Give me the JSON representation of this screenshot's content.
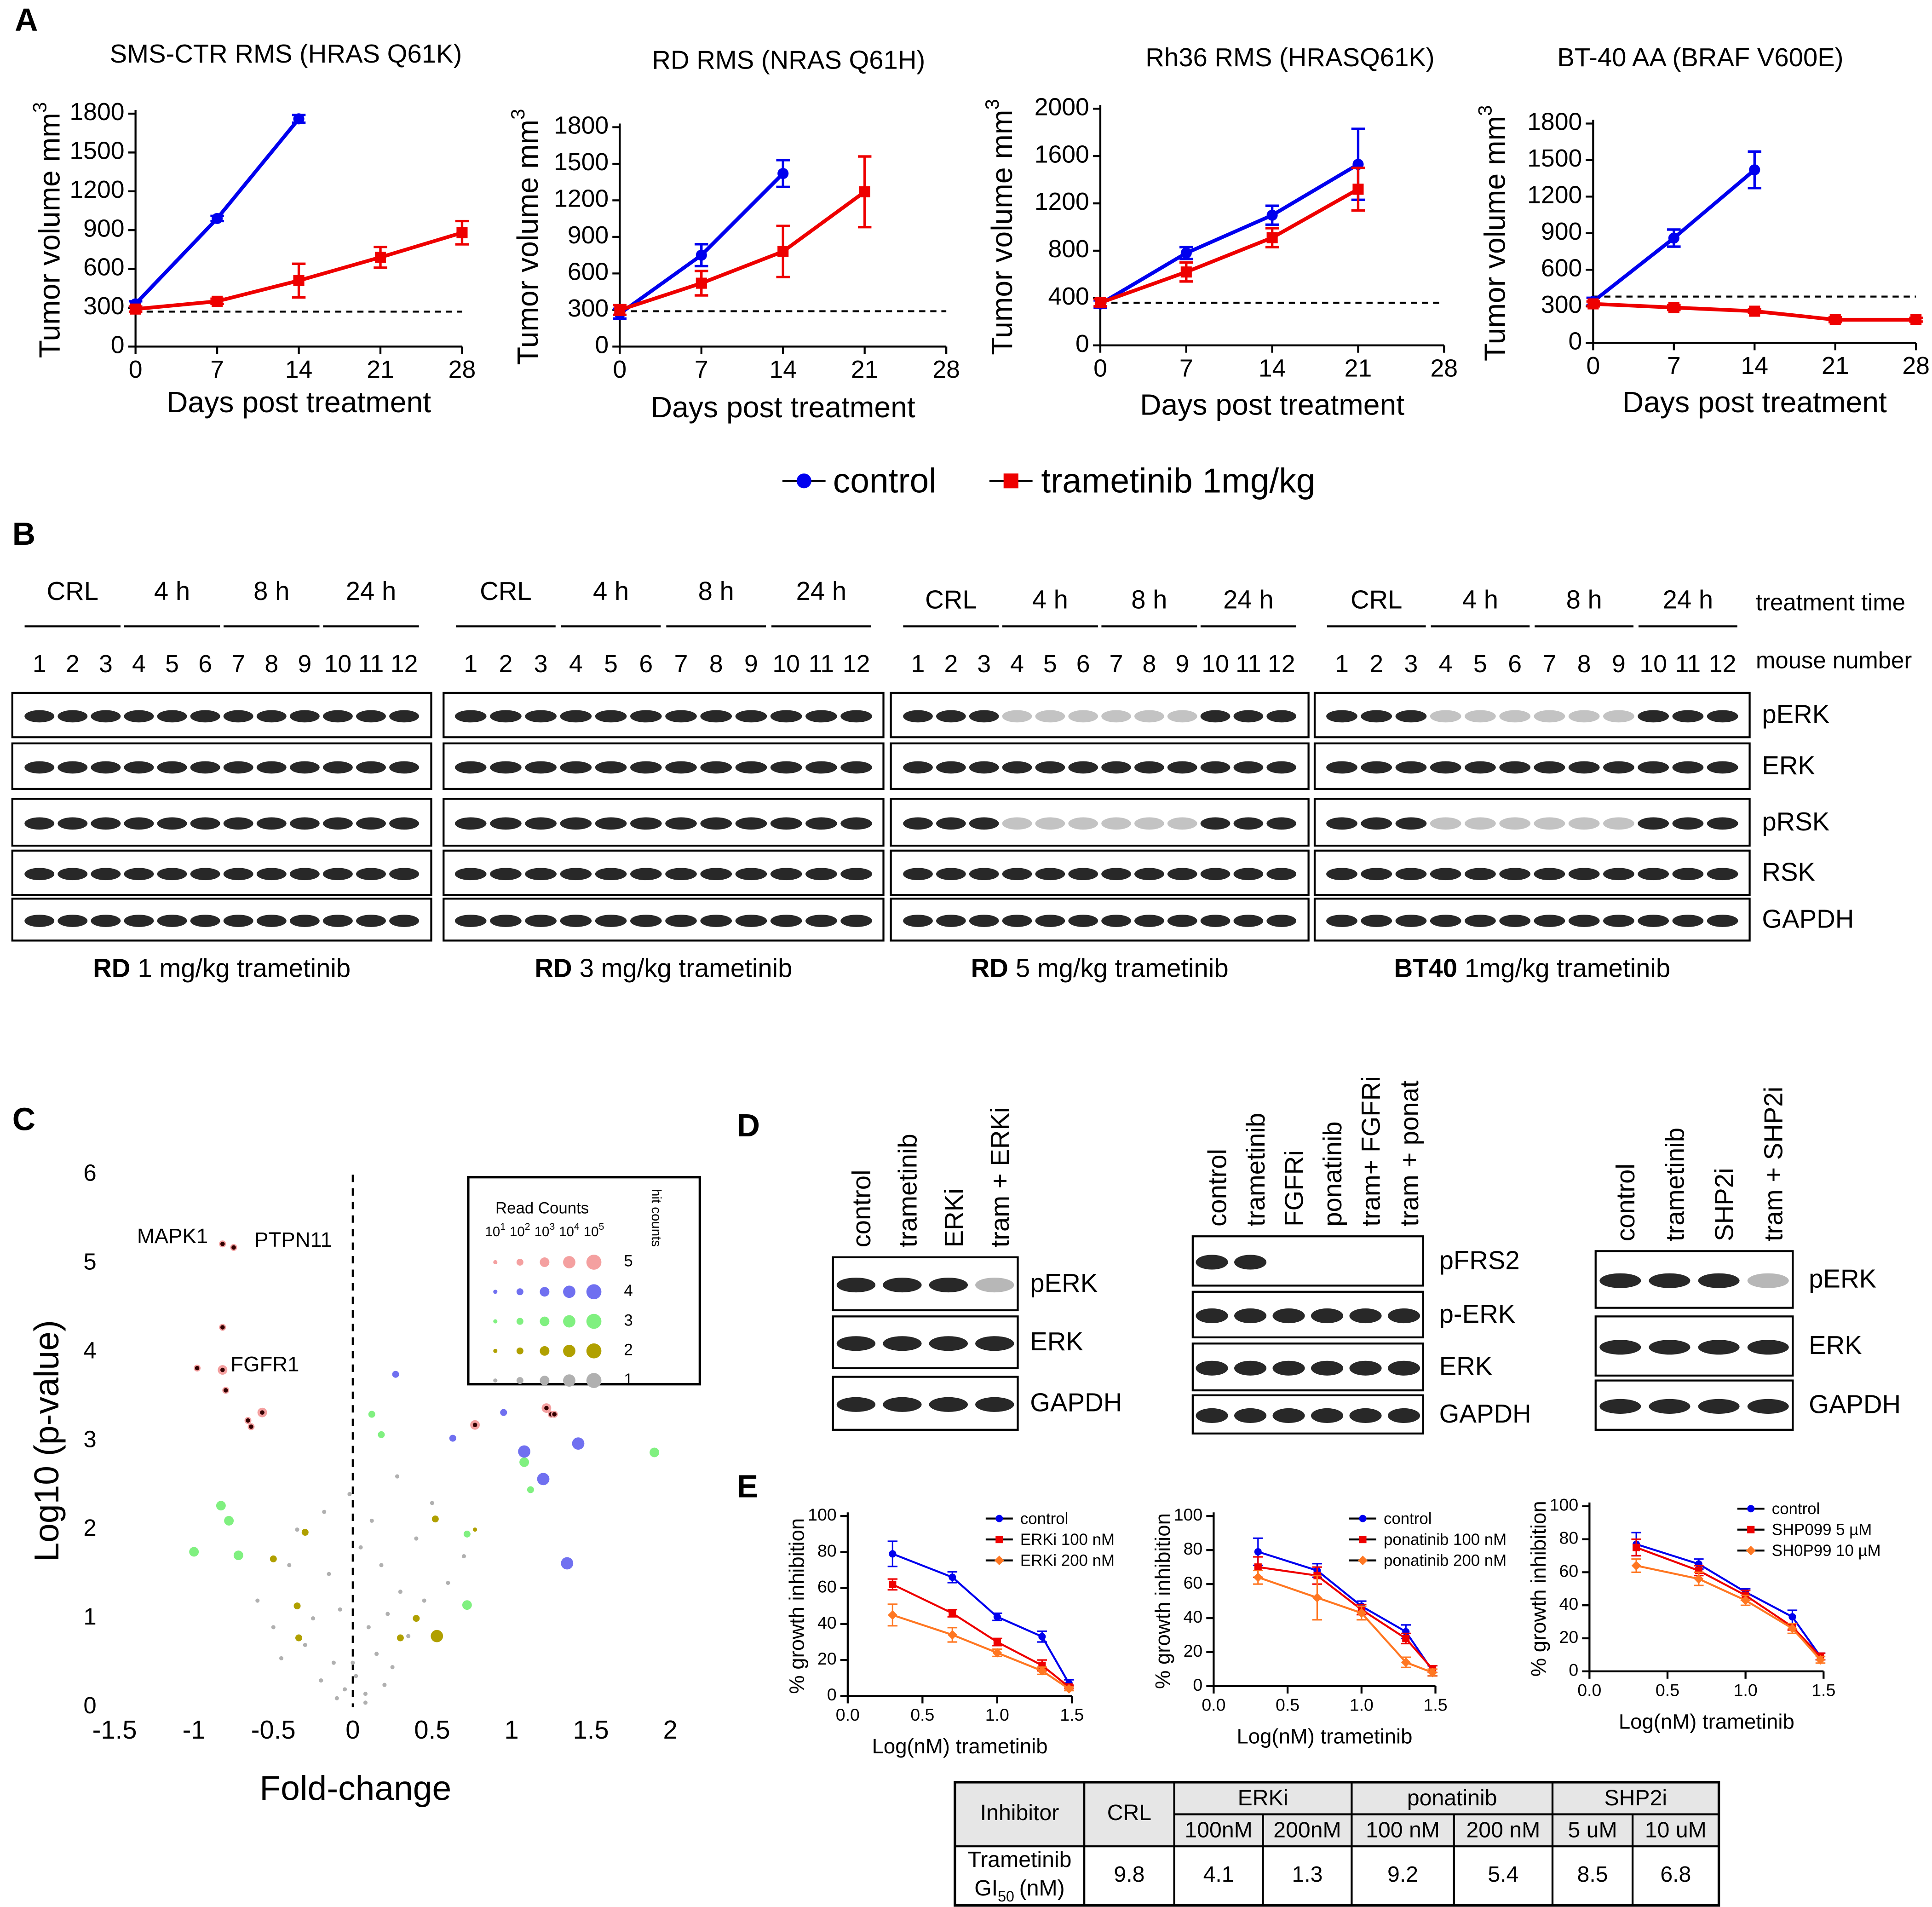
{
  "panel_labels": [
    "A",
    "B",
    "C",
    "D",
    "E"
  ],
  "chart_data": [
    {
      "type": "line",
      "title": "SMS-CTR RMS (HRAS Q61K)",
      "x_label": "Days post treatment",
      "y_label": "Tumor volume mm",
      "y_label_sup": "3",
      "x": [
        0,
        7,
        14,
        21,
        28
      ],
      "xlim": [
        0,
        28
      ],
      "xticks": [
        0,
        7,
        14,
        21,
        28
      ],
      "ylim": [
        0,
        1800
      ],
      "yticks": [
        0,
        300,
        600,
        900,
        1200,
        1500,
        1800
      ],
      "reference_line": 270,
      "legend": "below",
      "series": [
        {
          "name": "control",
          "color": "#0000ee",
          "marker": "circle",
          "values": [
            330,
            990,
            1760,
            null,
            null
          ],
          "errors": [
            20,
            20,
            30,
            null,
            null
          ]
        },
        {
          "name": "trametinib 1mg/kg",
          "color": "#ee0000",
          "marker": "square",
          "values": [
            290,
            350,
            510,
            690,
            880
          ],
          "errors": [
            20,
            20,
            130,
            80,
            90
          ]
        }
      ]
    },
    {
      "type": "line",
      "title": "RD RMS (NRAS Q61H)",
      "x_label": "Days post treatment",
      "y_label": "Tumor volume mm",
      "y_label_sup": "3",
      "x": [
        0,
        7,
        14,
        21,
        28
      ],
      "xlim": [
        0,
        28
      ],
      "xticks": [
        0,
        7,
        14,
        21,
        28
      ],
      "ylim": [
        0,
        1800
      ],
      "yticks": [
        0,
        300,
        600,
        900,
        1200,
        1500,
        1800
      ],
      "reference_line": 290,
      "series": [
        {
          "color": "#0000ee",
          "marker": "circle",
          "values": [
            270,
            750,
            1420,
            null,
            null
          ],
          "errors": [
            40,
            90,
            110,
            null,
            null
          ]
        },
        {
          "color": "#ee0000",
          "marker": "square",
          "values": [
            300,
            520,
            780,
            1270,
            null
          ],
          "errors": [
            40,
            100,
            210,
            290,
            null
          ]
        }
      ]
    },
    {
      "type": "line",
      "title": "Rh36 RMS (HRASQ61K)",
      "x_label": "Days post treatment",
      "y_label": "Tumor volume mm",
      "y_label_sup": "3",
      "x": [
        0,
        7,
        14,
        21,
        28
      ],
      "xlim": [
        0,
        28
      ],
      "xticks": [
        0,
        7,
        14,
        21,
        28
      ],
      "ylim": [
        0,
        2000
      ],
      "yticks": [
        0,
        400,
        800,
        1200,
        1600,
        2000
      ],
      "reference_line": 360,
      "series": [
        {
          "color": "#0000ee",
          "marker": "circle",
          "values": [
            350,
            780,
            1100,
            1530,
            null
          ],
          "errors": [
            30,
            50,
            80,
            300,
            null
          ]
        },
        {
          "color": "#ee0000",
          "marker": "square",
          "values": [
            360,
            620,
            910,
            1320,
            null
          ],
          "errors": [
            30,
            80,
            80,
            180,
            null
          ]
        }
      ]
    },
    {
      "type": "line",
      "title": "BT-40 AA (BRAF V600E)",
      "x_label": "Days post treatment",
      "y_label": "Tumor volume mm",
      "y_label_sup": "3",
      "x": [
        0,
        7,
        14,
        21,
        28
      ],
      "xlim": [
        0,
        28
      ],
      "xticks": [
        0,
        7,
        14,
        21,
        28
      ],
      "ylim": [
        0,
        1800
      ],
      "yticks": [
        0,
        300,
        600,
        900,
        1200,
        1500,
        1800
      ],
      "reference_line": 380,
      "series": [
        {
          "color": "#0000ee",
          "marker": "circle",
          "values": [
            340,
            860,
            1420,
            null,
            null
          ],
          "errors": [
            30,
            70,
            150,
            null,
            null
          ]
        },
        {
          "color": "#ee0000",
          "marker": "square",
          "values": [
            320,
            290,
            260,
            190,
            190
          ],
          "errors": [
            20,
            20,
            15,
            20,
            15
          ]
        }
      ]
    },
    {
      "type": "scatter",
      "x_label": "Fold-change",
      "y_label": "Log10 (p-value)",
      "xlim": [
        -1.5,
        2
      ],
      "xticks": [
        -1.5,
        -1,
        -0.5,
        0,
        0.5,
        1,
        1.5,
        2
      ],
      "ylim": [
        0,
        6
      ],
      "yticks": [
        0,
        1,
        2,
        3,
        4,
        5,
        6
      ],
      "zero_line": true,
      "legend": "top-right",
      "legend_title": "Read Counts",
      "legend_hit_title": "hit counts",
      "size_base": "10",
      "size_exponents": [
        1,
        2,
        3,
        4,
        5
      ],
      "annotations": [
        "MAPK1",
        "PTPN11",
        "FGFR1"
      ],
      "series": [
        {
          "name": "5",
          "color": "#f4a0a0",
          "x": [
            -0.82,
            -0.75,
            -0.82,
            -0.82,
            -0.98,
            -0.8,
            -0.66,
            -0.64,
            -0.57,
            1.22,
            1.25,
            1.27,
            0.77
          ],
          "values": [
            5.22,
            5.18,
            4.28,
            3.8,
            3.82,
            3.57,
            3.23,
            3.16,
            3.32,
            3.37,
            3.3,
            3.3,
            3.18
          ],
          "sizes": [
            2,
            2,
            2,
            3,
            2,
            2,
            2,
            2,
            3,
            3,
            2,
            2,
            3
          ]
        },
        {
          "name": "4",
          "color": "#7070f0",
          "x": [
            0.27,
            0.63,
            0.95,
            1.08,
            1.2,
            1.42,
            1.35
          ],
          "values": [
            3.75,
            3.03,
            3.32,
            2.88,
            2.57,
            2.97,
            1.62
          ],
          "sizes": [
            2,
            2,
            2,
            4,
            4,
            4,
            4
          ]
        },
        {
          "name": "3",
          "color": "#80f080",
          "x": [
            0.12,
            0.18,
            0.72,
            1.08,
            1.12,
            -0.78,
            -0.83,
            -1.0,
            -0.72,
            1.9,
            0.72
          ],
          "values": [
            3.3,
            3.07,
            1.95,
            2.76,
            2.45,
            2.1,
            2.27,
            1.75,
            1.71,
            2.87,
            1.15
          ],
          "sizes": [
            2,
            2,
            2,
            3,
            2,
            3,
            3,
            3,
            3,
            3,
            3
          ]
        },
        {
          "name": "2",
          "color": "#b0a000",
          "x": [
            -0.3,
            -0.5,
            -0.35,
            -0.34,
            0.52,
            0.77,
            0.53,
            0.3,
            0.4
          ],
          "values": [
            1.97,
            1.67,
            1.14,
            0.78,
            2.12,
            2.0,
            0.8,
            0.78,
            1.0
          ],
          "sizes": [
            2,
            2,
            2,
            2,
            2,
            1,
            4,
            2,
            2
          ]
        },
        {
          "name": "1",
          "color": "#b0b0b0",
          "x": [
            -0.05,
            0.02,
            0.08,
            -0.12,
            0.15,
            -0.2,
            0.1,
            -0.08,
            0.25,
            -0.3,
            0.3,
            -0.15,
            0.05,
            0.2,
            -0.25,
            0.35,
            -0.4,
            0.45,
            -0.5,
            0.12,
            -0.02,
            0.18,
            -0.35,
            0.4,
            0.6,
            -0.6,
            0.28,
            -0.18,
            0.08,
            -0.1,
            0.5,
            -0.45,
            0.7,
            0.0,
            0.22
          ],
          "values": [
            0.2,
            0.35,
            0.15,
            0.5,
            0.6,
            0.3,
            0.9,
            1.1,
            0.45,
            0.7,
            1.3,
            1.5,
            1.8,
            0.25,
            1.0,
            0.8,
            1.6,
            1.2,
            0.9,
            2.1,
            2.4,
            1.6,
            2.0,
            1.9,
            1.4,
            1.2,
            2.6,
            2.2,
            0.05,
            0.1,
            2.3,
            0.55,
            1.7,
            0.5,
            1.05
          ],
          "sizes": [
            1,
            1,
            1,
            1,
            1,
            1,
            1,
            1,
            1,
            1,
            1,
            1,
            1,
            1,
            1,
            1,
            1,
            1,
            1,
            1,
            1,
            1,
            1,
            1,
            1,
            1,
            1,
            1,
            1,
            1,
            1,
            1,
            1,
            1,
            1
          ]
        }
      ]
    },
    {
      "type": "line",
      "x_label": "Log(nM) trametinib",
      "y_label": "% growth inhibition",
      "x": [
        0.3,
        0.7,
        1,
        1.3,
        1.48
      ],
      "xlim": [
        0,
        1.5
      ],
      "xticks": [
        {
          "value": 0,
          "label": "0.0"
        },
        0.5,
        {
          "value": 1,
          "label": "1.0"
        },
        1.5
      ],
      "ylim": [
        0,
        100
      ],
      "yticks": [
        0,
        20,
        40,
        60,
        80,
        100
      ],
      "legend": "top-right",
      "series": [
        {
          "name": "control",
          "color": "#0000ee",
          "marker": "circle",
          "values": [
            79,
            66,
            44,
            33,
            7
          ],
          "errors": [
            7,
            3,
            2,
            3,
            2
          ]
        },
        {
          "name": "ERKi 100 nM",
          "color": "#ee0000",
          "marker": "square",
          "values": [
            62,
            46,
            30,
            17,
            5
          ],
          "errors": [
            3,
            2,
            2,
            3,
            1
          ]
        },
        {
          "name": "ERKi 200 nM",
          "color": "#ff7722",
          "marker": "diamond",
          "values": [
            45,
            34,
            24,
            14,
            4
          ],
          "errors": [
            6,
            4,
            2,
            2,
            1
          ]
        }
      ]
    },
    {
      "type": "line",
      "x_label": "Log(nM) trametinib",
      "y_label": "% growth inhibition",
      "x": [
        0.3,
        0.7,
        1,
        1.3,
        1.48
      ],
      "xlim": [
        0,
        1.5
      ],
      "xticks": [
        {
          "value": 0,
          "label": "0.0"
        },
        0.5,
        {
          "value": 1,
          "label": "1.0"
        },
        1.5
      ],
      "ylim": [
        0,
        100
      ],
      "yticks": [
        0,
        20,
        40,
        60,
        80,
        100
      ],
      "legend": "top-right",
      "series": [
        {
          "name": "control",
          "color": "#0000ee",
          "marker": "circle",
          "values": [
            79,
            68,
            47,
            32,
            9
          ],
          "errors": [
            8,
            4,
            3,
            4,
            3
          ]
        },
        {
          "name": "ponatinib 100 nM",
          "color": "#ee0000",
          "marker": "square",
          "values": [
            70,
            65,
            45,
            28,
            10
          ],
          "errors": [
            6,
            5,
            3,
            3,
            2
          ]
        },
        {
          "name": "ponatinib 200 nM",
          "color": "#ff7722",
          "marker": "diamond",
          "values": [
            64,
            52,
            43,
            14,
            8
          ],
          "errors": [
            4,
            13,
            4,
            3,
            2
          ]
        }
      ]
    },
    {
      "type": "line",
      "x_label": "Log(nM) trametinib",
      "y_label": "% growth inhibition",
      "x": [
        0.3,
        0.7,
        1,
        1.3,
        1.48
      ],
      "xlim": [
        0,
        1.5
      ],
      "xticks": [
        {
          "value": 0,
          "label": "0.0"
        },
        0.5,
        {
          "value": 1,
          "label": "1.0"
        },
        1.5
      ],
      "ylim": [
        0,
        100
      ],
      "yticks": [
        0,
        20,
        40,
        60,
        80,
        100
      ],
      "legend": "top-right",
      "series": [
        {
          "name": "control",
          "color": "#0000ee",
          "marker": "circle",
          "values": [
            77,
            65,
            48,
            33,
            9
          ],
          "errors": [
            7,
            3,
            2,
            4,
            2
          ]
        },
        {
          "name": "SHP099 5 µM",
          "color": "#ee0000",
          "marker": "square",
          "values": [
            75,
            61,
            46,
            27,
            9
          ],
          "errors": [
            5,
            3,
            3,
            2,
            2
          ]
        },
        {
          "name": "SH0P99 10 µM",
          "color": "#ff7722",
          "marker": "diamond",
          "values": [
            64,
            56,
            43,
            26,
            7
          ],
          "errors": [
            4,
            4,
            3,
            3,
            2
          ]
        }
      ]
    }
  ],
  "panel_B": {
    "header_labels": [
      "treatment time",
      "mouse number"
    ],
    "row_labels": [
      "pERK",
      "ERK",
      "pRSK",
      "RSK",
      "GAPDH"
    ],
    "groups": [
      {
        "times": [
          "CRL",
          "4 h",
          "8 h",
          "24 h"
        ],
        "lanes": [
          1,
          2,
          3,
          4,
          5,
          6,
          7,
          8,
          9,
          10,
          11,
          12
        ],
        "caption_bold": "RD",
        "caption": "1 mg/kg trametinib"
      },
      {
        "times": [
          "CRL",
          "4 h",
          "8 h",
          "24 h"
        ],
        "lanes": [
          1,
          2,
          3,
          4,
          5,
          6,
          7,
          8,
          9,
          10,
          11,
          12
        ],
        "caption_bold": "RD",
        "caption": "3 mg/kg trametinib"
      },
      {
        "times": [
          "CRL",
          "4 h",
          "8 h",
          "24 h"
        ],
        "lanes": [
          1,
          2,
          3,
          4,
          5,
          6,
          7,
          8,
          9,
          10,
          11,
          12
        ],
        "caption_bold": "RD",
        "caption": "5 mg/kg trametinib"
      },
      {
        "times": [
          "CRL",
          "4 h",
          "8 h",
          "24 h"
        ],
        "lanes": [
          1,
          2,
          3,
          4,
          5,
          6,
          7,
          8,
          9,
          10,
          11,
          12
        ],
        "caption_bold": "BT40",
        "caption": "1mg/kg trametinib"
      }
    ]
  },
  "panel_D": {
    "groups": [
      {
        "lanes": [
          "control",
          "trametinib",
          "ERKi",
          "tram + ERKi"
        ],
        "rows": [
          "pERK",
          "ERK",
          "GAPDH"
        ]
      },
      {
        "lanes": [
          "control",
          "trametinib",
          "FGFRi",
          "ponatinib",
          "tram+ FGFRi",
          "tram + ponat"
        ],
        "rows": [
          "pFRS2",
          "p-ERK",
          "ERK",
          "GAPDH"
        ]
      },
      {
        "lanes": [
          "control",
          "trametinib",
          "SHP2i",
          "tram + SHP2i"
        ],
        "rows": [
          "pERK",
          "ERK",
          "GAPDH"
        ]
      }
    ]
  },
  "table": {
    "header": [
      "Inhibitor",
      "CRL",
      "ERKi",
      "ponatinib",
      "SHP2i"
    ],
    "subheader": [
      "100nM",
      "200nM",
      "100 nM",
      "200 nM",
      "5 uM",
      "10 uM"
    ],
    "row_label": "Trametinib",
    "row_label_2": "GI",
    "row_label_sub": "50",
    "row_label_unit": "(nM)",
    "values": [
      9.8,
      4.1,
      1.3,
      9.2,
      5.4,
      8.5,
      6.8
    ]
  }
}
